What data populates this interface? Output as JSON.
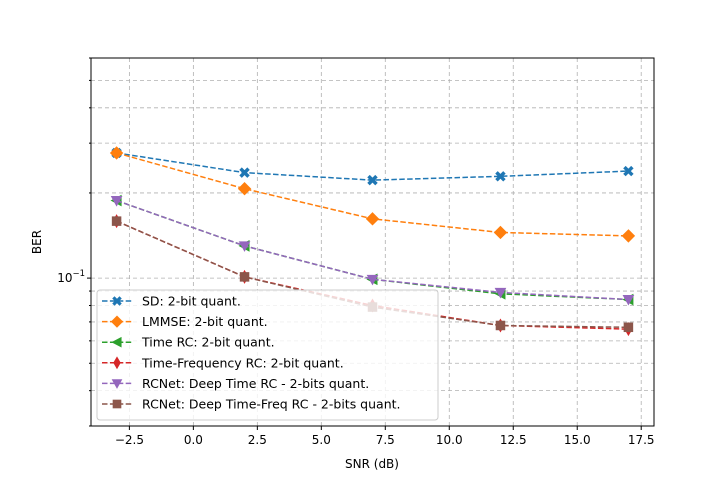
{
  "chart_data": {
    "type": "line",
    "title": "",
    "xlabel": "SNR (dB)",
    "ylabel": "BER",
    "yscale": "log",
    "xlim": [
      -4.0,
      18.0
    ],
    "ylim": [
      0.03,
      0.6
    ],
    "x": [
      -3,
      2,
      7,
      12,
      17
    ],
    "xticks": [
      -2.5,
      0.0,
      2.5,
      5.0,
      7.5,
      10.0,
      12.5,
      15.0,
      17.5
    ],
    "xtick_labels": [
      "−2.5",
      "0.0",
      "2.5",
      "5.0",
      "7.5",
      "10.0",
      "12.5",
      "15.0",
      "17.5"
    ],
    "ytick_major": 0.1,
    "ytick_major_label_base": "10",
    "ytick_major_label_exp": "−1",
    "grid": true,
    "legend_location": "lower-left",
    "series": [
      {
        "name": "SD: 2-bit quant.",
        "color": "#1f77b4",
        "marker": "x",
        "values": [
          0.277,
          0.236,
          0.222,
          0.229,
          0.239
        ]
      },
      {
        "name": "LMMSE: 2-bit quant.",
        "color": "#ff7f0e",
        "marker": "diamond",
        "values": [
          0.277,
          0.207,
          0.162,
          0.145,
          0.141
        ]
      },
      {
        "name": "Time RC: 2-bit quant.",
        "color": "#2ca02c",
        "marker": "triangle-left",
        "values": [
          0.188,
          0.13,
          0.099,
          0.088,
          0.084
        ]
      },
      {
        "name": "Time-Frequency RC: 2-bit quant.",
        "color": "#d62728",
        "marker": "thin-diamond",
        "values": [
          0.159,
          0.101,
          0.08,
          0.068,
          0.066
        ]
      },
      {
        "name": "RCNet: Deep Time RC - 2-bits quant.",
        "color": "#9467bd",
        "marker": "triangle-down",
        "values": [
          0.188,
          0.13,
          0.099,
          0.089,
          0.084
        ]
      },
      {
        "name": "RCNet: Deep Time-Freq RC - 2-bits quant.",
        "color": "#8c564b",
        "marker": "square",
        "values": [
          0.159,
          0.101,
          0.079,
          0.068,
          0.067
        ]
      }
    ]
  }
}
